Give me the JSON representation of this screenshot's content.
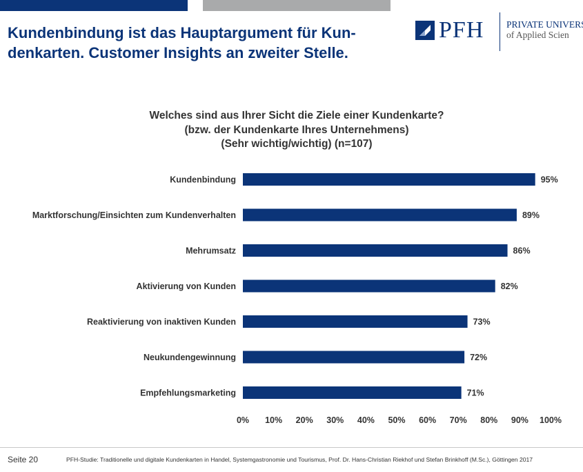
{
  "slide": {
    "title": "Kundenbindung ist das Hauptargument für Kun-denkarten. Customer Insights an zweiter Stelle.",
    "title_line1": "Kundenbindung ist das Hauptargument für Kun-",
    "title_line2": "denkarten. Customer Insights an zweiter Stelle."
  },
  "logo": {
    "name": "PFH",
    "line1": "PRIVATE UNIVERS",
    "line2": "of Applied Scien"
  },
  "colors": {
    "brand": "#0b3478",
    "bar": "#0b3478",
    "accent_gray": "#a9aaab"
  },
  "chart_data": {
    "type": "bar",
    "orientation": "horizontal",
    "title_lines": [
      "Welches sind aus Ihrer Sicht die Ziele einer Kundenkarte?",
      "(bzw. der Kundenkarte Ihres Unternehmens)",
      "(Sehr wichtig/wichtig) (n=107)"
    ],
    "categories": [
      "Kundenbindung",
      "Marktforschung/Einsichten zum Kundenverhalten",
      "Mehrumsatz",
      "Aktivierung von Kunden",
      "Reaktivierung von inaktiven Kunden",
      "Neukundengewinnung",
      "Empfehlungsmarketing"
    ],
    "values": [
      95,
      89,
      86,
      82,
      73,
      72,
      71
    ],
    "value_labels": [
      "95%",
      "89%",
      "86%",
      "82%",
      "73%",
      "72%",
      "71%"
    ],
    "xlim": [
      0,
      100
    ],
    "ticks": [
      "0%",
      "10%",
      "20%",
      "30%",
      "40%",
      "50%",
      "60%",
      "70%",
      "80%",
      "90%",
      "100%"
    ],
    "grid": false
  },
  "footer": {
    "page": "Seite 20",
    "source": "PFH-Studie: Traditionelle und digitale Kundenkarten in Handel, Systemgastronomie und Tourismus, Prof. Dr. Hans-Christian Riekhof und Stefan Brinkhoff (M.Sc.), Göttingen 2017"
  }
}
